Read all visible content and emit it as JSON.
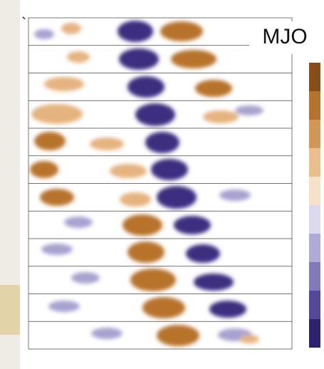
{
  "mark": "`",
  "label": "MJO"
}
